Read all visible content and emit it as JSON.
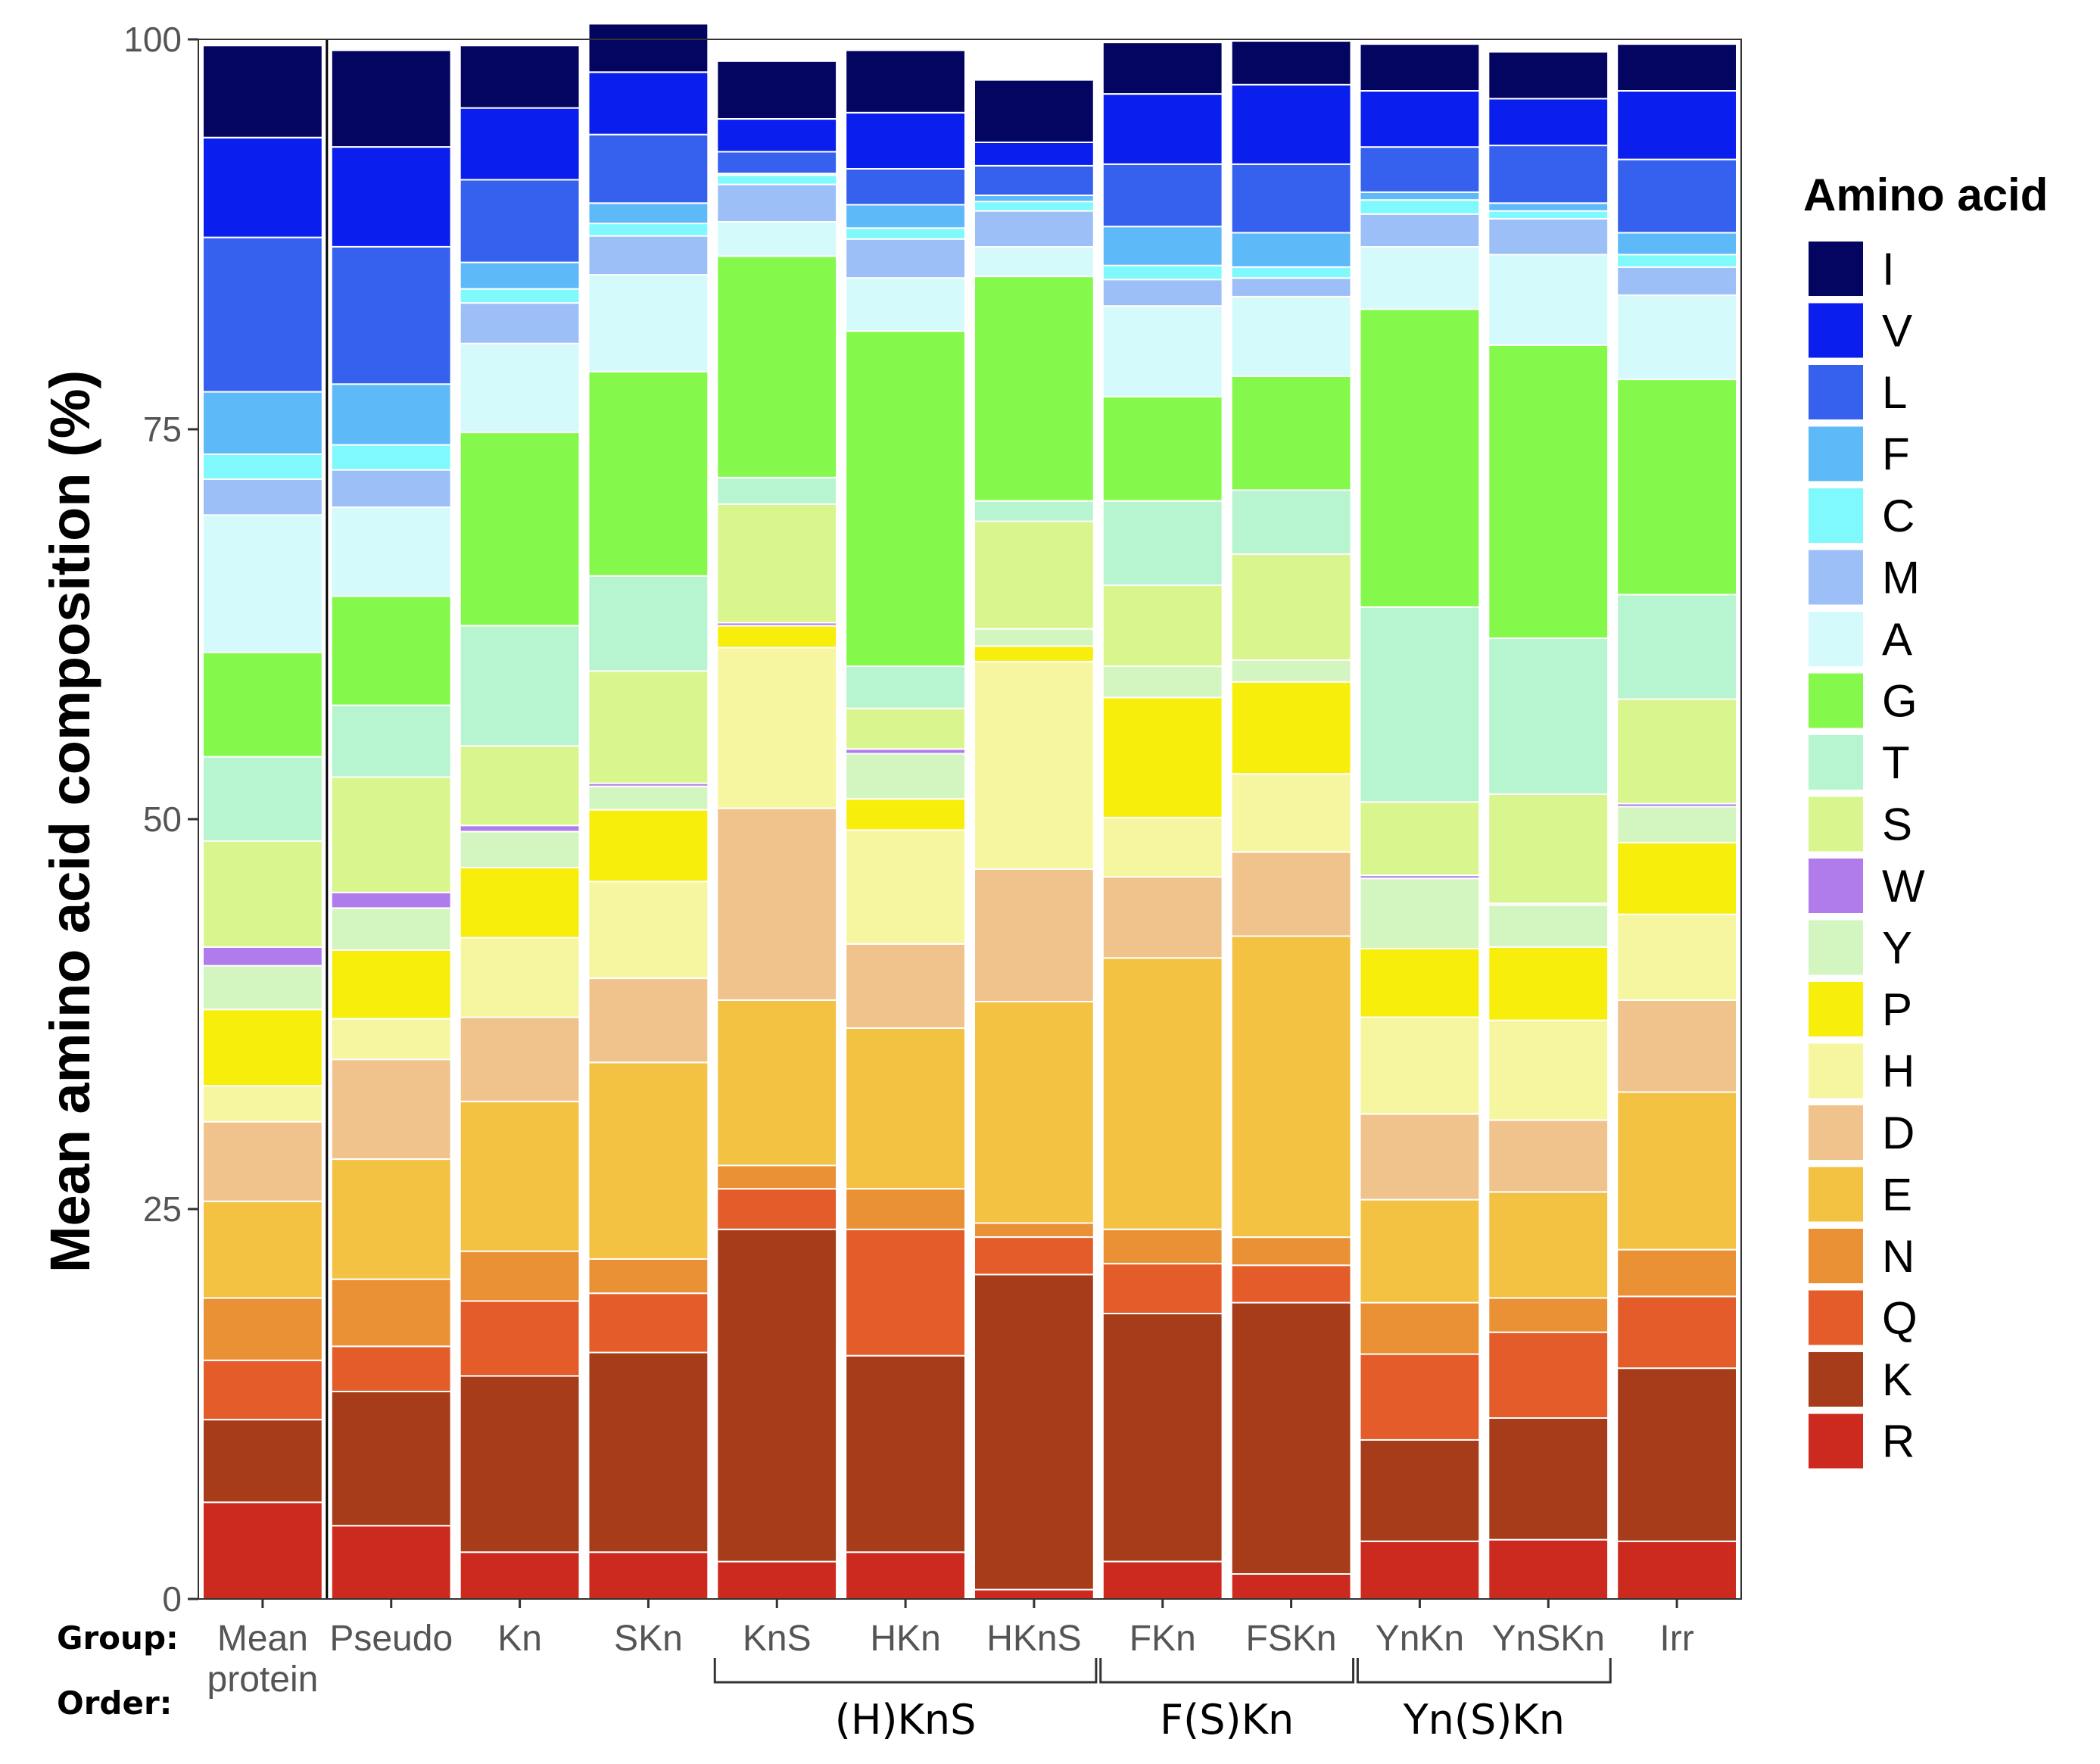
{
  "chart_data": {
    "type": "bar",
    "stacked": true,
    "ylabel": "Mean amino acid composition (%)",
    "ylim": [
      0,
      100
    ],
    "yticks": [
      0,
      25,
      50,
      75,
      100
    ],
    "row_labels": {
      "group": "Group:",
      "order": "Order:"
    },
    "categories": [
      "Mean protein",
      "Pseudo",
      "Kn",
      "SKn",
      "KnS",
      "HKn",
      "HKnS",
      "FKn",
      "FSKn",
      "YnKn",
      "YnSKn",
      "Irr"
    ],
    "category_lines": [
      [
        "Mean",
        "protein"
      ],
      [
        "Pseudo"
      ],
      [
        "Kn"
      ],
      [
        "SKn"
      ],
      [
        "KnS"
      ],
      [
        "HKn"
      ],
      [
        "HKnS"
      ],
      [
        "FKn"
      ],
      [
        "FSKn"
      ],
      [
        "YnKn"
      ],
      [
        "YnSKn"
      ],
      [
        "Irr"
      ]
    ],
    "orders": [
      {
        "label": "(H)KnS",
        "from": 4,
        "to": 6
      },
      {
        "label": "F(S)Kn",
        "from": 7,
        "to": 8
      },
      {
        "label": "Yn(S)Kn",
        "from": 9,
        "to": 10
      }
    ],
    "legend": {
      "title": "Amino acid",
      "position": "right"
    },
    "grid": false,
    "series": [
      {
        "name": "R",
        "color": "#CC2A1E",
        "values": [
          6.2,
          4.7,
          3.0,
          3.0,
          2.4,
          3.0,
          0.6,
          2.4,
          1.6,
          3.7,
          3.8,
          3.7
        ]
      },
      {
        "name": "K",
        "color": "#A63C1A",
        "values": [
          5.3,
          8.6,
          11.3,
          12.8,
          21.3,
          12.6,
          20.2,
          15.9,
          17.4,
          6.5,
          7.8,
          11.1
        ]
      },
      {
        "name": "Q",
        "color": "#E35C2A",
        "values": [
          3.8,
          2.9,
          4.8,
          3.8,
          2.6,
          8.1,
          2.4,
          3.2,
          2.4,
          5.5,
          5.5,
          4.6
        ]
      },
      {
        "name": "N",
        "color": "#EA9135",
        "values": [
          4.0,
          4.3,
          3.2,
          2.2,
          1.5,
          2.6,
          0.9,
          2.2,
          1.8,
          3.3,
          2.2,
          3.0
        ]
      },
      {
        "name": "E",
        "color": "#F3C243",
        "values": [
          6.2,
          7.7,
          9.6,
          12.6,
          10.6,
          10.3,
          14.2,
          17.4,
          19.3,
          6.6,
          6.8,
          10.1
        ]
      },
      {
        "name": "D",
        "color": "#F1C38C",
        "values": [
          5.1,
          6.4,
          5.4,
          5.4,
          12.3,
          5.4,
          8.5,
          5.2,
          5.4,
          5.5,
          4.6,
          5.9
        ]
      },
      {
        "name": "H",
        "color": "#F6F5A0",
        "values": [
          2.3,
          2.6,
          5.1,
          6.2,
          10.3,
          7.3,
          13.3,
          3.8,
          5.0,
          6.2,
          6.4,
          5.5
        ]
      },
      {
        "name": "P",
        "color": "#F7EE0C",
        "values": [
          4.9,
          4.4,
          4.5,
          4.6,
          1.4,
          2.0,
          1.0,
          7.7,
          5.9,
          4.4,
          4.7,
          4.6
        ]
      },
      {
        "name": "Y",
        "color": "#D3F6C0",
        "values": [
          2.8,
          2.7,
          2.3,
          1.5,
          0.0,
          2.9,
          1.1,
          2.0,
          1.4,
          4.5,
          2.7,
          2.3
        ]
      },
      {
        "name": "W",
        "color": "#B07CEC",
        "values": [
          1.2,
          1.0,
          0.4,
          0.2,
          0.2,
          0.3,
          0.0,
          0.0,
          0.0,
          0.2,
          0.1,
          0.2
        ]
      },
      {
        "name": "S",
        "color": "#D9F58D",
        "values": [
          6.8,
          7.4,
          5.1,
          7.2,
          7.6,
          2.6,
          6.9,
          5.2,
          6.8,
          4.7,
          7.0,
          6.7
        ]
      },
      {
        "name": "T",
        "color": "#B7F4D0",
        "values": [
          5.4,
          4.6,
          7.7,
          6.1,
          1.7,
          2.7,
          1.3,
          5.4,
          4.1,
          12.5,
          10.0,
          6.7
        ]
      },
      {
        "name": "G",
        "color": "#84F94C",
        "values": [
          6.7,
          7.0,
          12.4,
          13.1,
          14.2,
          21.5,
          14.4,
          6.7,
          7.3,
          19.1,
          18.8,
          13.8
        ]
      },
      {
        "name": "A",
        "color": "#D4FAFB",
        "values": [
          8.8,
          5.7,
          5.7,
          6.2,
          2.2,
          3.4,
          1.9,
          5.8,
          5.1,
          4.0,
          5.8,
          5.4
        ]
      },
      {
        "name": "M",
        "color": "#9DBFF8",
        "values": [
          2.3,
          2.4,
          2.6,
          2.5,
          2.4,
          2.5,
          2.3,
          1.7,
          1.2,
          2.1,
          2.3,
          1.8
        ]
      },
      {
        "name": "C",
        "color": "#7FF9FB",
        "values": [
          1.6,
          1.6,
          0.9,
          0.8,
          0.6,
          0.7,
          0.6,
          0.9,
          0.7,
          0.9,
          0.5,
          0.8
        ]
      },
      {
        "name": "F",
        "color": "#5DB9F8",
        "values": [
          4.0,
          3.9,
          1.7,
          1.3,
          0.1,
          1.5,
          0.4,
          2.5,
          2.2,
          0.5,
          0.5,
          1.4
        ]
      },
      {
        "name": "L",
        "color": "#3561EE",
        "values": [
          9.9,
          8.8,
          5.3,
          4.4,
          1.4,
          2.3,
          1.9,
          4.0,
          4.4,
          2.9,
          3.7,
          4.7
        ]
      },
      {
        "name": "V",
        "color": "#0A1FEE",
        "values": [
          6.4,
          6.4,
          4.6,
          4.0,
          2.1,
          3.6,
          1.5,
          4.5,
          5.1,
          3.6,
          3.0,
          4.4
        ]
      },
      {
        "name": "I",
        "color": "#040560",
        "values": [
          5.9,
          6.2,
          4.0,
          3.1,
          3.7,
          4.0,
          4.0,
          3.3,
          2.8,
          3.0,
          3.0,
          3.0
        ]
      }
    ]
  }
}
